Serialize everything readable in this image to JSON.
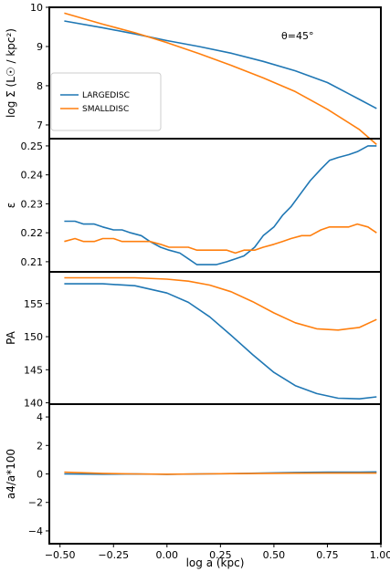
{
  "chart_data": [
    {
      "type": "line",
      "ylabel": "log Σ (L☉ / kpc²)",
      "xlim": [
        -0.55,
        1.0
      ],
      "ylim": [
        6.65,
        10.0
      ],
      "yticks": [
        7,
        8,
        9,
        10
      ],
      "annotation": "θ=45°",
      "legend_position": "left",
      "series": [
        {
          "name": "LARGEDISC",
          "color": "#1f77b4",
          "x": [
            -0.48,
            -0.3,
            -0.15,
            0.0,
            0.15,
            0.3,
            0.45,
            0.6,
            0.75,
            0.9,
            0.98
          ],
          "y": [
            9.65,
            9.48,
            9.32,
            9.15,
            9.0,
            8.83,
            8.62,
            8.38,
            8.08,
            7.65,
            7.42
          ]
        },
        {
          "name": "SMALLDISC",
          "color": "#ff7f0e",
          "x": [
            -0.48,
            -0.3,
            -0.15,
            0.0,
            0.15,
            0.3,
            0.45,
            0.6,
            0.75,
            0.9,
            0.98
          ],
          "y": [
            9.85,
            9.57,
            9.35,
            9.1,
            8.82,
            8.52,
            8.2,
            7.85,
            7.4,
            6.88,
            6.5
          ]
        }
      ]
    },
    {
      "type": "line",
      "ylabel": "ε",
      "xlim": [
        -0.55,
        1.0
      ],
      "ylim": [
        0.2065,
        0.2525
      ],
      "yticks": [
        0.21,
        0.22,
        0.23,
        0.24,
        0.25
      ],
      "series": [
        {
          "name": "LARGEDISC",
          "color": "#1f77b4",
          "x": [
            -0.48,
            -0.43,
            -0.39,
            -0.34,
            -0.3,
            -0.25,
            -0.21,
            -0.17,
            -0.12,
            -0.08,
            -0.03,
            0.01,
            0.06,
            0.1,
            0.14,
            0.19,
            0.23,
            0.28,
            0.32,
            0.36,
            0.41,
            0.45,
            0.5,
            0.54,
            0.58,
            0.63,
            0.67,
            0.72,
            0.76,
            0.8,
            0.85,
            0.89,
            0.94,
            0.98
          ],
          "y": [
            0.224,
            0.224,
            0.223,
            0.223,
            0.222,
            0.221,
            0.221,
            0.22,
            0.219,
            0.217,
            0.215,
            0.214,
            0.213,
            0.211,
            0.209,
            0.209,
            0.209,
            0.21,
            0.211,
            0.212,
            0.215,
            0.219,
            0.222,
            0.226,
            0.229,
            0.234,
            0.238,
            0.242,
            0.245,
            0.246,
            0.247,
            0.248,
            0.25,
            0.25
          ]
        },
        {
          "name": "SMALLDISC",
          "color": "#ff7f0e",
          "x": [
            -0.48,
            -0.43,
            -0.39,
            -0.34,
            -0.3,
            -0.25,
            -0.21,
            -0.17,
            -0.12,
            -0.08,
            -0.03,
            0.01,
            0.06,
            0.1,
            0.14,
            0.19,
            0.23,
            0.28,
            0.32,
            0.36,
            0.41,
            0.45,
            0.5,
            0.54,
            0.58,
            0.63,
            0.67,
            0.72,
            0.76,
            0.8,
            0.85,
            0.89,
            0.94,
            0.98
          ],
          "y": [
            0.217,
            0.218,
            0.217,
            0.217,
            0.218,
            0.218,
            0.217,
            0.217,
            0.217,
            0.217,
            0.216,
            0.215,
            0.215,
            0.215,
            0.214,
            0.214,
            0.214,
            0.214,
            0.213,
            0.214,
            0.214,
            0.215,
            0.216,
            0.217,
            0.218,
            0.219,
            0.219,
            0.221,
            0.222,
            0.222,
            0.222,
            0.223,
            0.222,
            0.22
          ]
        }
      ]
    },
    {
      "type": "line",
      "ylabel": "PA",
      "xlim": [
        -0.55,
        1.0
      ],
      "ylim": [
        139.8,
        159.8
      ],
      "yticks": [
        140,
        145,
        150,
        155
      ],
      "series": [
        {
          "name": "LARGEDISC",
          "color": "#1f77b4",
          "x": [
            -0.48,
            -0.3,
            -0.15,
            0.0,
            0.1,
            0.2,
            0.3,
            0.4,
            0.5,
            0.6,
            0.7,
            0.8,
            0.9,
            0.98
          ],
          "y": [
            158.0,
            158.0,
            157.7,
            156.6,
            155.2,
            153.0,
            150.2,
            147.3,
            144.6,
            142.6,
            141.4,
            140.7,
            140.6,
            140.9
          ]
        },
        {
          "name": "SMALLDISC",
          "color": "#ff7f0e",
          "x": [
            -0.48,
            -0.3,
            -0.15,
            0.0,
            0.1,
            0.2,
            0.3,
            0.4,
            0.5,
            0.6,
            0.7,
            0.8,
            0.9,
            0.98
          ],
          "y": [
            158.9,
            158.9,
            158.9,
            158.7,
            158.4,
            157.8,
            156.8,
            155.3,
            153.6,
            152.1,
            151.2,
            151.0,
            151.4,
            152.6
          ]
        }
      ]
    },
    {
      "type": "line",
      "ylabel": "a4/a*100",
      "xlabel": "log a (kpc)",
      "xlim": [
        -0.55,
        1.0
      ],
      "ylim": [
        -4.9,
        4.9
      ],
      "yticks": [
        -4,
        -2,
        0,
        2,
        4
      ],
      "xticks": [
        "−0.50",
        "−0.25",
        "0.00",
        "0.25",
        "0.50",
        "0.75",
        "1.00"
      ],
      "xtick_values": [
        -0.5,
        -0.25,
        0.0,
        0.25,
        0.5,
        0.75,
        1.0
      ],
      "series": [
        {
          "name": "LARGEDISC",
          "color": "#1f77b4",
          "x": [
            -0.48,
            -0.3,
            -0.15,
            0.0,
            0.15,
            0.3,
            0.45,
            0.6,
            0.75,
            0.9,
            0.98
          ],
          "y": [
            0.0,
            -0.02,
            0.0,
            -0.03,
            0.0,
            0.02,
            0.06,
            0.1,
            0.12,
            0.13,
            0.14
          ]
        },
        {
          "name": "SMALLDISC",
          "color": "#ff7f0e",
          "x": [
            -0.48,
            -0.3,
            -0.15,
            0.0,
            0.15,
            0.3,
            0.45,
            0.6,
            0.75,
            0.9,
            0.98
          ],
          "y": [
            0.12,
            0.04,
            0.0,
            -0.02,
            0.0,
            0.02,
            0.04,
            0.05,
            0.06,
            0.06,
            0.06
          ]
        }
      ]
    }
  ]
}
